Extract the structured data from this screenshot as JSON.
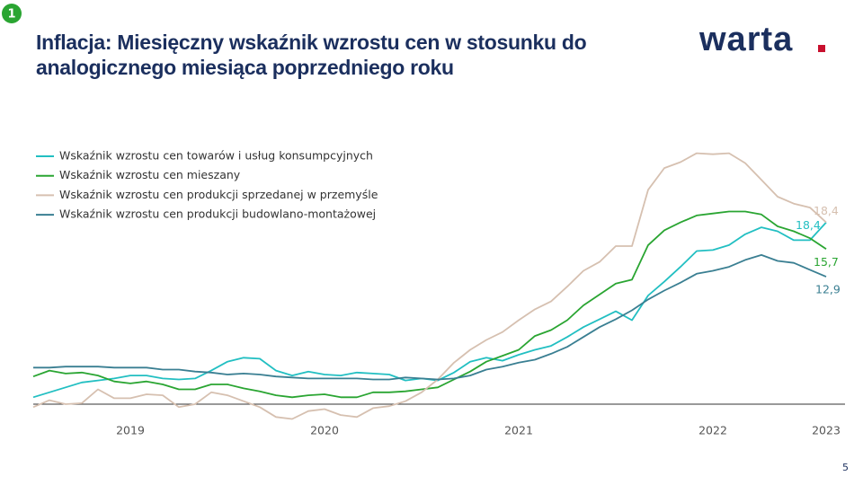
{
  "slide": {
    "badge": "1",
    "logo": "warta",
    "page": "5"
  },
  "chart_data": {
    "type": "line",
    "title": [
      "Inflacja: Miesięczny wskaźnik wzrostu cen w stosunku do",
      "analogicznego miesiąca poprzedniego roku"
    ],
    "categories": [
      null,
      null,
      null,
      null,
      null,
      null,
      "2019",
      null,
      null,
      null,
      null,
      null,
      null,
      null,
      null,
      null,
      null,
      null,
      "2020",
      null,
      null,
      null,
      null,
      null,
      null,
      null,
      null,
      null,
      null,
      null,
      "2021",
      null,
      null,
      null,
      null,
      null,
      null,
      null,
      null,
      null,
      null,
      null,
      "2022",
      null,
      null,
      null,
      null,
      null,
      null,
      "2023"
    ],
    "ylim": [
      -3,
      27
    ],
    "legend": "top-left",
    "series": [
      {
        "name": "Wskaźnik wzrostu cen towarów  i usług konsumpcyjnych",
        "color": "#22bfc2",
        "values": [
          0.7,
          1.2,
          1.7,
          2.2,
          2.4,
          2.6,
          2.9,
          2.9,
          2.6,
          2.5,
          2.6,
          3.4,
          4.3,
          4.7,
          4.6,
          3.4,
          2.9,
          3.3,
          3.0,
          2.9,
          3.2,
          3.1,
          3.0,
          2.4,
          2.6,
          2.4,
          3.2,
          4.3,
          4.7,
          4.4,
          5.0,
          5.5,
          5.9,
          6.8,
          7.8,
          8.6,
          9.4,
          8.5,
          11.0,
          12.4,
          13.9,
          15.5,
          15.6,
          16.1,
          17.2,
          17.9,
          17.5,
          16.6,
          16.6,
          18.4
        ],
        "value_labels": [
          null,
          null,
          null,
          null,
          null,
          null,
          null,
          null,
          null,
          null,
          null,
          null,
          null,
          null,
          null,
          null,
          null,
          null,
          null,
          null,
          null,
          null,
          null,
          null,
          null,
          null,
          null,
          null,
          null,
          null,
          null,
          null,
          null,
          null,
          null,
          null,
          null,
          null,
          null,
          null,
          null,
          null,
          null,
          null,
          null,
          null,
          null,
          null,
          null,
          "18,4"
        ]
      },
      {
        "name": "Wskaźnik wzrostu cen mieszany",
        "color": "#2aa532",
        "values": [
          2.8,
          3.4,
          3.1,
          3.2,
          2.9,
          2.3,
          2.1,
          2.3,
          2.0,
          1.5,
          1.5,
          2.0,
          2.0,
          1.6,
          1.3,
          0.9,
          0.7,
          0.9,
          1.0,
          0.7,
          0.7,
          1.2,
          1.2,
          1.3,
          1.5,
          1.7,
          2.5,
          3.3,
          4.3,
          4.9,
          5.5,
          6.9,
          7.5,
          8.5,
          10.0,
          11.1,
          12.2,
          12.6,
          16.1,
          17.6,
          18.4,
          19.1,
          19.3,
          19.5,
          19.5,
          19.2,
          18.0,
          17.5,
          16.8,
          15.7
        ],
        "value_labels": [
          null,
          null,
          null,
          null,
          null,
          null,
          null,
          null,
          null,
          null,
          null,
          null,
          null,
          null,
          null,
          null,
          null,
          null,
          null,
          null,
          null,
          null,
          null,
          null,
          null,
          null,
          null,
          null,
          null,
          null,
          null,
          null,
          null,
          null,
          null,
          null,
          null,
          null,
          null,
          null,
          null,
          null,
          null,
          null,
          null,
          null,
          null,
          null,
          null,
          "15,7"
        ]
      },
      {
        "name": "Wskaźnik wzrostu cen produkcji sprzedanej  w przemyśle",
        "color": "#d6c0b0",
        "values": [
          -0.3,
          0.4,
          0.0,
          0.1,
          1.5,
          0.6,
          0.6,
          1.0,
          0.9,
          -0.3,
          0.0,
          1.2,
          0.9,
          0.3,
          -0.3,
          -1.3,
          -1.5,
          -0.7,
          -0.5,
          -1.1,
          -1.3,
          -0.4,
          -0.2,
          0.3,
          1.2,
          2.5,
          4.2,
          5.5,
          6.5,
          7.3,
          8.5,
          9.6,
          10.4,
          11.9,
          13.5,
          14.4,
          16.0,
          16.0,
          21.7,
          23.9,
          24.5,
          25.4,
          25.3,
          25.4,
          24.4,
          22.7,
          21.0,
          20.3,
          19.9,
          18.4
        ],
        "value_labels": [
          null,
          null,
          null,
          null,
          null,
          null,
          null,
          null,
          null,
          null,
          null,
          null,
          null,
          null,
          null,
          null,
          null,
          null,
          null,
          null,
          null,
          null,
          null,
          null,
          null,
          null,
          null,
          null,
          null,
          null,
          null,
          null,
          null,
          null,
          null,
          null,
          null,
          null,
          null,
          null,
          null,
          null,
          null,
          null,
          null,
          null,
          null,
          null,
          null,
          "18,4"
        ]
      },
      {
        "name": "Wskaźnik wzrostu cen produkcji budowlano-montażowej",
        "color": "#3a7f92",
        "values": [
          3.7,
          3.7,
          3.8,
          3.8,
          3.8,
          3.7,
          3.7,
          3.7,
          3.5,
          3.5,
          3.3,
          3.2,
          3.0,
          3.1,
          3.0,
          2.8,
          2.7,
          2.6,
          2.6,
          2.6,
          2.6,
          2.5,
          2.5,
          2.7,
          2.6,
          2.5,
          2.6,
          2.9,
          3.5,
          3.8,
          4.2,
          4.5,
          5.1,
          5.8,
          6.8,
          7.8,
          8.6,
          9.5,
          10.6,
          11.5,
          12.3,
          13.2,
          13.5,
          13.9,
          14.6,
          15.1,
          14.5,
          14.3,
          13.6,
          12.9
        ],
        "value_labels": [
          null,
          null,
          null,
          null,
          null,
          null,
          null,
          null,
          null,
          null,
          null,
          null,
          null,
          null,
          null,
          null,
          null,
          null,
          null,
          null,
          null,
          null,
          null,
          null,
          null,
          null,
          null,
          null,
          null,
          null,
          null,
          null,
          null,
          null,
          null,
          null,
          null,
          null,
          null,
          null,
          null,
          null,
          null,
          null,
          null,
          null,
          null,
          null,
          null,
          "12,9"
        ]
      }
    ]
  }
}
